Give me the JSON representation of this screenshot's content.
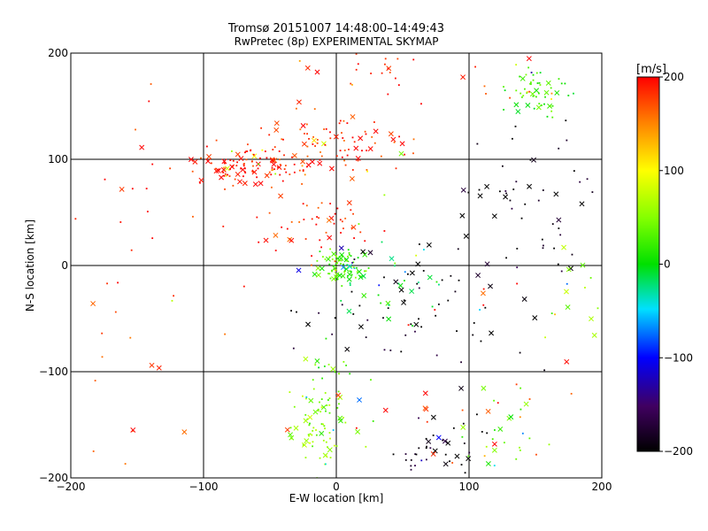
{
  "chart_data": {
    "type": "scatter",
    "title": "Tromsø 20151007 14:48:00–14:49:43",
    "subtitle": "RwPretec (8p) EXPERIMENTAL SKYMAP",
    "xlabel": "E-W location [km]",
    "ylabel": "N-S location [km]",
    "xlim": [
      -200,
      200
    ],
    "ylim": [
      -200,
      200
    ],
    "xticks": [
      "−200",
      "−100",
      "0",
      "100",
      "200"
    ],
    "yticks": [
      "−200",
      "−100",
      "0",
      "100",
      "200"
    ],
    "grid": true,
    "markers": [
      "dot",
      "cross"
    ],
    "colorbar": {
      "label": "[m/s]",
      "range": [
        -200,
        200
      ],
      "ticks": [
        "200",
        "100",
        "0",
        "−100",
        "−200"
      ],
      "colormap": "rainbow: black → purple → blue → cyan → green → yellow → red"
    },
    "clusters": [
      {
        "x": -65,
        "y": 95,
        "vel": 190,
        "n": 120,
        "sx": 22,
        "sy": 10
      },
      {
        "x": 0,
        "y": 115,
        "vel": 185,
        "n": 80,
        "sx": 28,
        "sy": 16
      },
      {
        "x": -10,
        "y": 40,
        "vel": 185,
        "n": 50,
        "sx": 20,
        "sy": 18
      },
      {
        "x": 5,
        "y": 0,
        "vel": 30,
        "n": 80,
        "sx": 10,
        "sy": 8
      },
      {
        "x": 40,
        "y": -20,
        "vel": 0,
        "n": 30,
        "sx": 20,
        "sy": 20
      },
      {
        "x": 150,
        "y": 160,
        "vel": 20,
        "n": 60,
        "sx": 12,
        "sy": 12
      },
      {
        "x": 150,
        "y": 60,
        "vel": -195,
        "n": 50,
        "sx": 30,
        "sy": 40
      },
      {
        "x": 60,
        "y": -40,
        "vel": -195,
        "n": 70,
        "sx": 40,
        "sy": 30
      },
      {
        "x": 80,
        "y": -170,
        "vel": -190,
        "n": 40,
        "sx": 15,
        "sy": 15
      },
      {
        "x": -15,
        "y": -160,
        "vel": 60,
        "n": 60,
        "sx": 15,
        "sy": 20
      },
      {
        "x": 0,
        "y": -120,
        "vel": 40,
        "n": 40,
        "sx": 15,
        "sy": 20
      },
      {
        "x": 30,
        "y": 180,
        "vel": 190,
        "n": 30,
        "sx": 40,
        "sy": 15
      },
      {
        "x": 130,
        "y": -160,
        "vel": 40,
        "n": 25,
        "sx": 15,
        "sy": 20
      },
      {
        "x": -140,
        "y": 80,
        "vel": 190,
        "n": 25,
        "sx": 40,
        "sy": 60
      },
      {
        "x": -150,
        "y": -80,
        "vel": 180,
        "n": 20,
        "sx": 30,
        "sy": 60
      },
      {
        "x": 100,
        "y": -100,
        "vel": 185,
        "n": 25,
        "sx": 50,
        "sy": 50
      },
      {
        "x": 180,
        "y": -30,
        "vel": 50,
        "n": 15,
        "sx": 15,
        "sy": 25
      }
    ]
  }
}
